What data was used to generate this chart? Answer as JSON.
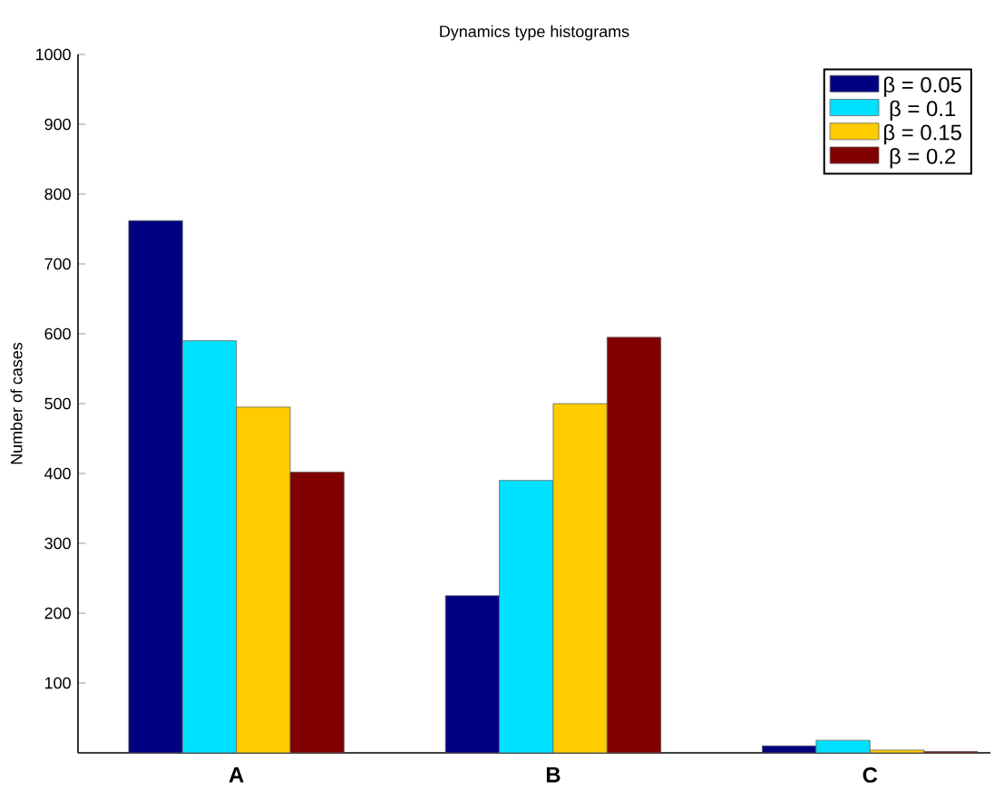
{
  "chart_data": {
    "type": "bar",
    "title": "Dynamics type histograms",
    "ylabel": "Number of cases",
    "categories": [
      "A",
      "B",
      "C"
    ],
    "series": [
      {
        "name": "β = 0.05",
        "color": "#000080",
        "values": [
          762,
          225,
          10
        ]
      },
      {
        "name": "β = 0.1",
        "color": "#00e0ff",
        "values": [
          590,
          390,
          18
        ]
      },
      {
        "name": "β = 0.15",
        "color": "#ffcc00",
        "values": [
          495,
          500,
          4
        ]
      },
      {
        "name": "β = 0.2",
        "color": "#800000",
        "values": [
          402,
          595,
          2
        ]
      }
    ],
    "ylim": [
      0,
      1000
    ],
    "yticks": [
      100,
      200,
      300,
      400,
      500,
      600,
      700,
      800,
      900,
      1000
    ],
    "legend": "top right"
  }
}
